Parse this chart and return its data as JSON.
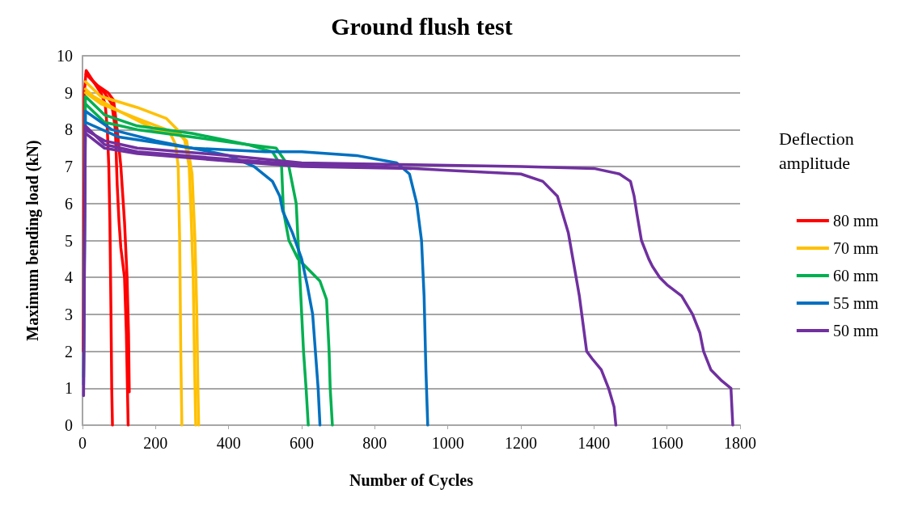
{
  "chart_data": {
    "type": "line",
    "title": "Ground flush test",
    "xlabel": "Number of Cycles",
    "ylabel": "Maximum bending load (kN)",
    "legend_title": "Deflection amplitude",
    "legend": "right",
    "grid": "y",
    "marker": "none",
    "line_style": "solid",
    "xlim": [
      0,
      1800
    ],
    "xticks": [
      0,
      200,
      400,
      600,
      800,
      1000,
      1200,
      1400,
      1600,
      1800
    ],
    "ylim": [
      0,
      10
    ],
    "yticks": [
      0,
      1,
      2,
      3,
      4,
      5,
      6,
      7,
      8,
      9,
      10
    ],
    "series": [
      {
        "name": "80 mm",
        "color": "#ff0000",
        "x": [
          2,
          5,
          10,
          30,
          50,
          62,
          68,
          72,
          75,
          78,
          80,
          82
        ],
        "values": [
          2,
          9,
          9.6,
          9.3,
          9.0,
          8.7,
          8.0,
          7.0,
          5.5,
          3,
          1,
          0
        ]
      },
      {
        "color": "#ff0000",
        "x": [
          10,
          30,
          60,
          80,
          90,
          95,
          100,
          105,
          115,
          120,
          123,
          125
        ],
        "values": [
          9.5,
          9.3,
          9.0,
          8.7,
          8.0,
          6.5,
          5.5,
          4.8,
          4.0,
          2.5,
          1,
          0
        ]
      },
      {
        "color": "#ff0000",
        "x": [
          10,
          40,
          70,
          85,
          95,
          105,
          115,
          122,
          126,
          128
        ],
        "values": [
          9.5,
          9.2,
          9.0,
          8.8,
          8.0,
          7.0,
          5.5,
          4.0,
          2.5,
          0.9
        ]
      },
      {
        "name": "70 mm",
        "color": "#ffc000",
        "x": [
          8,
          30,
          100,
          200,
          240,
          255,
          262,
          266,
          269,
          272
        ],
        "values": [
          9.1,
          8.9,
          8.5,
          8.0,
          7.9,
          7.6,
          7.0,
          5,
          2,
          0
        ]
      },
      {
        "color": "#ffc000",
        "x": [
          8,
          50,
          150,
          230,
          260,
          280,
          292,
          298,
          303,
          307,
          310
        ],
        "values": [
          9.3,
          8.9,
          8.6,
          8.3,
          8.0,
          7.7,
          7.0,
          5.5,
          4.0,
          1.5,
          0
        ]
      },
      {
        "color": "#ffc000",
        "x": [
          8,
          50,
          150,
          230,
          260,
          285,
          300,
          308,
          313,
          316,
          318
        ],
        "values": [
          9.0,
          8.7,
          8.3,
          8.0,
          7.9,
          7.7,
          6.8,
          5.0,
          3.0,
          1.0,
          0
        ]
      },
      {
        "name": "60 mm",
        "color": "#00b050",
        "x": [
          3,
          8,
          60,
          150,
          300,
          450,
          520,
          545,
          550,
          565,
          590,
          620,
          650,
          668,
          675,
          678,
          684
        ],
        "values": [
          1.3,
          8.9,
          8.4,
          8.1,
          7.9,
          7.6,
          7.4,
          7.0,
          5.8,
          5.0,
          4.5,
          4.2,
          3.9,
          3.4,
          2.0,
          1.0,
          0
        ]
      },
      {
        "color": "#00b050",
        "x": [
          8,
          60,
          150,
          300,
          450,
          530,
          565,
          585,
          595,
          605,
          612,
          618
        ],
        "values": [
          8.7,
          8.2,
          8.0,
          7.8,
          7.6,
          7.5,
          7.0,
          6.0,
          4.0,
          2.0,
          1.0,
          0
        ]
      },
      {
        "name": "55 mm",
        "color": "#0070c0",
        "x": [
          3,
          8,
          80,
          200,
          400,
          470,
          520,
          540,
          548,
          575,
          600,
          615,
          630,
          645,
          650
        ],
        "values": [
          1.1,
          8.5,
          8.0,
          7.7,
          7.3,
          7.0,
          6.6,
          6.2,
          5.8,
          5.2,
          4.5,
          3.8,
          3.0,
          1.0,
          0
        ]
      },
      {
        "color": "#0070c0",
        "x": [
          8,
          100,
          300,
          500,
          600,
          750,
          860,
          895,
          915,
          928,
          935,
          940,
          945
        ],
        "values": [
          8.2,
          7.8,
          7.5,
          7.4,
          7.4,
          7.3,
          7.1,
          6.8,
          6.0,
          5.0,
          3.5,
          1.5,
          0
        ]
      },
      {
        "name": "50 mm",
        "color": "#7030a0",
        "x": [
          3,
          8,
          60,
          150,
          400,
          600,
          800,
          1000,
          1100,
          1200,
          1260,
          1300,
          1330,
          1360,
          1380,
          1395,
          1420,
          1440,
          1455,
          1460
        ],
        "values": [
          0.8,
          8.1,
          7.6,
          7.4,
          7.2,
          7.05,
          7.0,
          6.9,
          6.85,
          6.8,
          6.6,
          6.2,
          5.2,
          3.5,
          2.0,
          1.8,
          1.5,
          1.0,
          0.5,
          0
        ]
      },
      {
        "color": "#7030a0",
        "x": [
          8,
          60,
          150,
          400,
          600,
          900,
          1200,
          1400,
          1470,
          1500,
          1510,
          1518,
          1530,
          1550,
          1560,
          1580,
          1600,
          1640,
          1670,
          1690,
          1700,
          1720,
          1750,
          1775,
          1780
        ],
        "values": [
          8.0,
          7.7,
          7.5,
          7.3,
          7.1,
          7.05,
          7.0,
          6.95,
          6.8,
          6.6,
          6.2,
          5.7,
          5.0,
          4.5,
          4.3,
          4.0,
          3.8,
          3.5,
          3.0,
          2.5,
          2.0,
          1.5,
          1.2,
          1.0,
          0
        ]
      },
      {
        "color": "#7030a0",
        "x": [
          8,
          60,
          150,
          400,
          600,
          900
        ],
        "values": [
          7.9,
          7.5,
          7.35,
          7.15,
          7.0,
          6.95
        ]
      }
    ]
  }
}
